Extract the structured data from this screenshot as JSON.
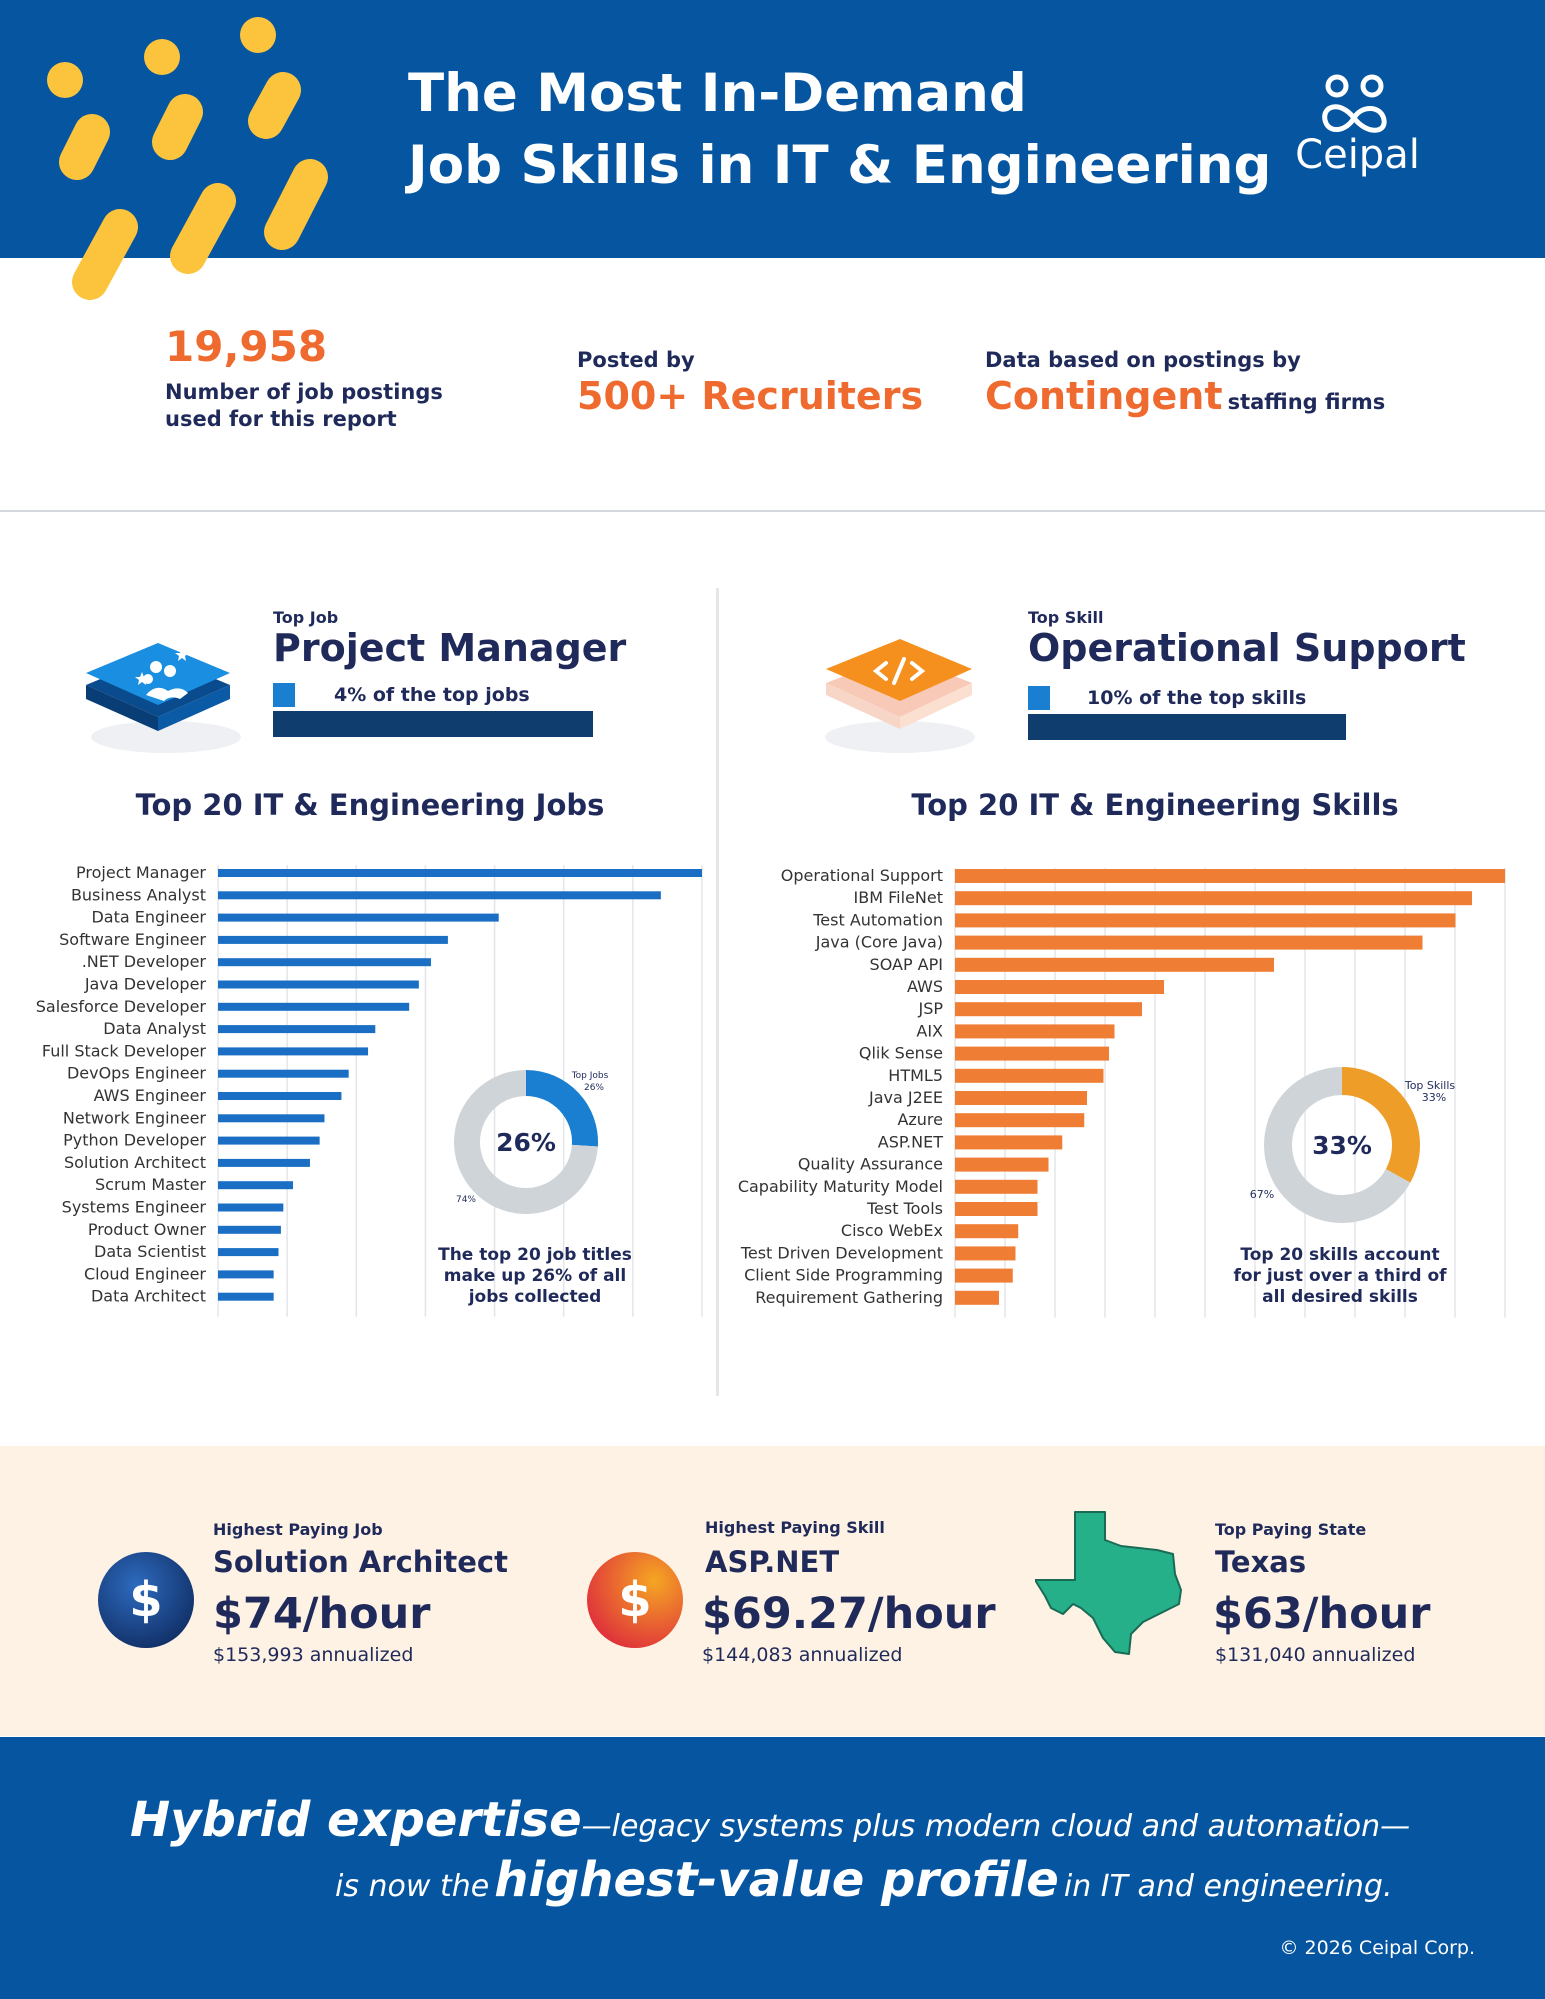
{
  "header": {
    "title_line1": "The Most In-Demand",
    "title_line2": "Job Skills in IT & Engineering",
    "logo_text": "Ceipal",
    "bg_color": "#0555a0",
    "dot_color": "#fcc43d"
  },
  "stats": {
    "postings_value": "19,958",
    "postings_label_line1": "Number of job postings",
    "postings_label_line2": "used for this report",
    "posted_by_label": "Posted by",
    "recruiters_value": "500+ Recruiters",
    "based_on_label": "Data based on postings by",
    "firm_type": "Contingent",
    "firm_suffix": "staffing firms"
  },
  "top_job": {
    "kicker": "Top Job",
    "name": "Project Manager",
    "pct_text": "4% of the top jobs",
    "pct_value": 0.04
  },
  "top_skill": {
    "kicker": "Top Skill",
    "name": "Operational Support",
    "pct_text": "10% of the top skills",
    "pct_value": 0.1
  },
  "chart_data": [
    {
      "type": "bar",
      "orientation": "horizontal",
      "title": "Top 20 IT & Engineering Jobs",
      "color": "#1a6fc4",
      "categories": [
        "Project Manager",
        "Business Analyst",
        "Data Engineer",
        "Software Engineer",
        ".NET Developer",
        "Java Developer",
        "Salesforce Developer",
        "Data Analyst",
        "Full Stack Developer",
        "DevOps Engineer",
        "AWS Engineer",
        "Network Engineer",
        "Python Developer",
        "Solution Architect",
        "Scrum Master",
        "Systems Engineer",
        "Product Owner",
        "Data Scientist",
        "Cloud Engineer",
        "Data Architect"
      ],
      "values": [
        100,
        91.5,
        58,
        47.5,
        44,
        41.5,
        39.5,
        32.5,
        31,
        27,
        25.5,
        22,
        21,
        19,
        15.5,
        13.5,
        13,
        12.5,
        11.5,
        11.5
      ],
      "xlim": [
        0,
        100
      ],
      "grid": true
    },
    {
      "type": "bar",
      "orientation": "horizontal",
      "title": "Top 20 IT & Engineering Skills",
      "color": "#ef7d34",
      "categories": [
        "Operational Support",
        "IBM FileNet",
        "Test Automation",
        "Java (Core Java)",
        "SOAP API",
        "AWS",
        "JSP",
        "AIX",
        "Qlik Sense",
        "HTML5",
        "Java J2EE",
        "Azure",
        "ASP.NET",
        "Quality Assurance",
        "Capability Maturity Model",
        "Test Tools",
        "Cisco WebEx",
        "Test Driven Development",
        "Client Side Programming",
        "Requirement Gathering"
      ],
      "values": [
        100,
        94,
        91,
        85,
        58,
        38,
        34,
        29,
        28,
        27,
        24,
        23.5,
        19.5,
        17,
        15,
        15,
        11.5,
        11,
        10.5,
        8
      ],
      "xlim": [
        0,
        100
      ],
      "grid": true
    },
    {
      "type": "pie",
      "title": "",
      "labels": [
        "Top Jobs",
        ""
      ],
      "values": [
        26,
        74
      ],
      "value_labels": [
        "26%",
        "74%"
      ],
      "center_label": "26%",
      "colors": [
        "#1a7fd0",
        "#cfd4d9"
      ]
    },
    {
      "type": "pie",
      "title": "",
      "labels": [
        "Top Skills",
        ""
      ],
      "values": [
        33,
        67
      ],
      "value_labels": [
        "33%",
        "67%"
      ],
      "center_label": "33%",
      "colors": [
        "#ee9d28",
        "#cfd4d9"
      ]
    }
  ],
  "donut_captions": {
    "jobs_line1": "The top 20 job titles",
    "jobs_line2": "make up 26% of all",
    "jobs_line3": "jobs collected",
    "skills_line1": "Top 20 skills account",
    "skills_line2": "for just over a third of",
    "skills_line3": "all desired skills"
  },
  "pay": {
    "job": {
      "kicker": "Highest Paying Job",
      "name": "Solution Architect",
      "rate": "$74/hour",
      "annual": "$153,993 annualized"
    },
    "skill": {
      "kicker": "Highest Paying Skill",
      "name": "ASP.NET",
      "rate": "$69.27/hour",
      "annual": "$144,083 annualized"
    },
    "state": {
      "kicker": "Top Paying State",
      "name": "Texas",
      "rate": "$63/hour",
      "annual": "$131,040 annualized"
    },
    "dollar_symbol": "$",
    "texas_color": "#26b08a"
  },
  "footer": {
    "q1_strong": "Hybrid expertise",
    "q1_light": "—legacy systems plus modern cloud and automation—",
    "q2_pre": "is now the",
    "q2_strong": "highest-value profile",
    "q2_post": "in IT and engineering.",
    "copyright": "© 2026 Ceipal Corp."
  }
}
